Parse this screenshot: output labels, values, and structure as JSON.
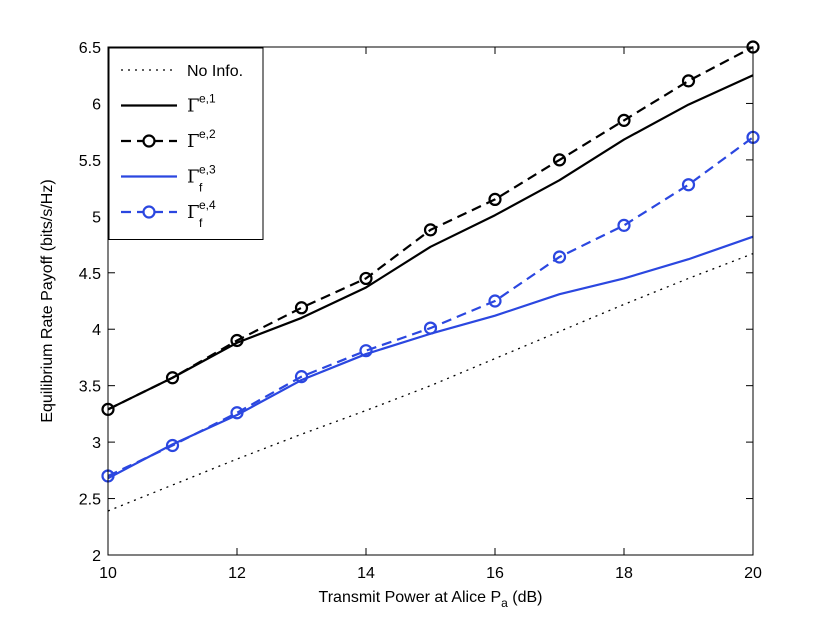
{
  "chart_data": {
    "type": "line",
    "title": "",
    "xlabel_main": "Transmit Power at Alice P",
    "xlabel_sub": "a",
    "xlabel_tail": " (dB)",
    "ylabel": "Equilibrium Rate Payoff (bits/s/Hz)",
    "xlim": [
      10,
      20
    ],
    "ylim": [
      2,
      6.5
    ],
    "xticks": [
      10,
      12,
      14,
      16,
      18,
      20
    ],
    "yticks": [
      2,
      2.5,
      3,
      3.5,
      4,
      4.5,
      5,
      5.5,
      6,
      6.5
    ],
    "ytick_labels": [
      "2",
      "2.5",
      "3",
      "3.5",
      "4",
      "4.5",
      "5",
      "5.5",
      "6",
      "6.5"
    ],
    "legend_position": "top-left",
    "x": [
      10,
      11,
      12,
      13,
      14,
      15,
      16,
      17,
      18,
      19,
      20
    ],
    "series": [
      {
        "name": "No Info.",
        "legend_base": "No Info.",
        "legend_sup": "",
        "legend_sub": "",
        "color": "#000000",
        "dash": "2,5",
        "marker": "none",
        "values": [
          2.39,
          2.62,
          2.85,
          3.07,
          3.28,
          3.5,
          3.74,
          3.98,
          4.22,
          4.45,
          4.67
        ]
      },
      {
        "name": "Γ^{e,1}",
        "legend_base": "Γ",
        "legend_sup": "e,1",
        "legend_sub": "",
        "color": "#000000",
        "dash": "",
        "marker": "none",
        "values": [
          3.29,
          3.57,
          3.88,
          4.1,
          4.37,
          4.73,
          5.01,
          5.32,
          5.68,
          5.99,
          6.25
        ]
      },
      {
        "name": "Γ^{e,2}",
        "legend_base": "Γ",
        "legend_sup": "e,2",
        "legend_sub": "",
        "color": "#000000",
        "dash": "10,6",
        "marker": "circle",
        "values": [
          3.29,
          3.57,
          3.9,
          4.19,
          4.45,
          4.88,
          5.15,
          5.5,
          5.85,
          6.2,
          6.5
        ]
      },
      {
        "name": "Γ_f^{e,3}",
        "legend_base": "Γ",
        "legend_sup": "e,3",
        "legend_sub": "f",
        "color": "#2b47e0",
        "dash": "",
        "marker": "none",
        "values": [
          2.68,
          2.98,
          3.24,
          3.55,
          3.78,
          3.96,
          4.12,
          4.31,
          4.45,
          4.62,
          4.82
        ]
      },
      {
        "name": "Γ_f^{e,4}",
        "legend_base": "Γ",
        "legend_sup": "e,4",
        "legend_sub": "f",
        "color": "#2b47e0",
        "dash": "10,6",
        "marker": "circle",
        "values": [
          2.7,
          2.97,
          3.26,
          3.58,
          3.81,
          4.01,
          4.25,
          4.64,
          4.92,
          5.28,
          5.7
        ]
      }
    ]
  }
}
